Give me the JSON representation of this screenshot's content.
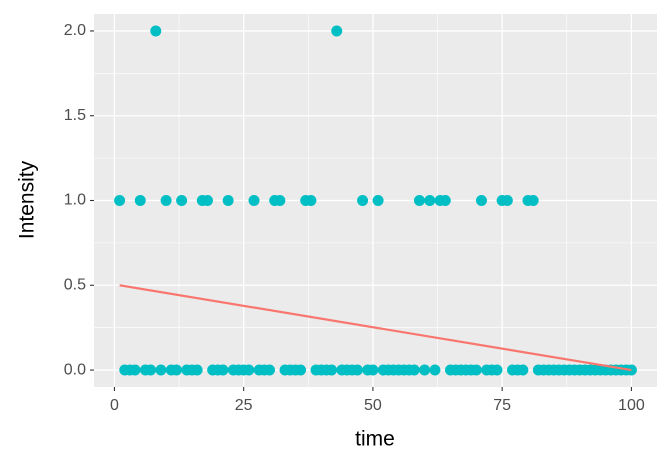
{
  "chart_data": {
    "type": "scatter",
    "x_label": "time",
    "y_label": "Intensity",
    "series": [
      {
        "type": "scatter",
        "color": "#00bfc4",
        "x": [
          1,
          2,
          3,
          4,
          5,
          6,
          7,
          8,
          9,
          10,
          11,
          12,
          13,
          14,
          15,
          16,
          17,
          18,
          19,
          20,
          21,
          22,
          23,
          24,
          25,
          26,
          27,
          28,
          29,
          30,
          31,
          32,
          33,
          34,
          35,
          36,
          37,
          38,
          39,
          40,
          41,
          42,
          43,
          44,
          45,
          46,
          47,
          48,
          49,
          50,
          51,
          52,
          53,
          54,
          55,
          56,
          57,
          58,
          59,
          60,
          61,
          62,
          63,
          64,
          65,
          66,
          67,
          68,
          69,
          70,
          71,
          72,
          73,
          74,
          75,
          76,
          77,
          78,
          79,
          80,
          81,
          82,
          83,
          84,
          85,
          86,
          87,
          88,
          89,
          90,
          91,
          92,
          93,
          94,
          95,
          96,
          97,
          98,
          99,
          100
        ],
        "values": [
          1,
          0,
          0,
          0,
          1,
          0,
          0,
          2,
          0,
          1,
          0,
          0,
          1,
          0,
          0,
          0,
          1,
          1,
          0,
          0,
          0,
          1,
          0,
          0,
          0,
          0,
          1,
          0,
          0,
          0,
          1,
          1,
          0,
          0,
          0,
          0,
          1,
          1,
          0,
          0,
          0,
          0,
          2,
          0,
          0,
          0,
          0,
          1,
          0,
          0,
          1,
          0,
          0,
          0,
          0,
          0,
          0,
          0,
          1,
          0,
          1,
          0,
          1,
          1,
          0,
          0,
          0,
          0,
          0,
          0,
          1,
          0,
          0,
          0,
          1,
          1,
          0,
          0,
          0,
          1,
          1,
          0,
          0,
          0,
          0,
          0,
          0,
          0,
          0,
          0,
          0,
          0,
          0,
          0,
          0,
          0,
          0,
          0,
          0,
          0
        ]
      },
      {
        "type": "line",
        "color": "#f8766d",
        "x": [
          1,
          100
        ],
        "values": [
          0.5,
          0
        ]
      }
    ],
    "xlim": [
      -3.95,
      104.95
    ],
    "ylim": [
      -0.1,
      2.1
    ],
    "xticks": [
      0,
      25,
      50,
      75,
      100
    ],
    "yticks": [
      {
        "value": 0,
        "label": "0.0"
      },
      {
        "value": 0.5,
        "label": "0.5"
      },
      {
        "value": 1,
        "label": "1.0"
      },
      {
        "value": 1.5,
        "label": "1.5"
      },
      {
        "value": 2,
        "label": "2.0"
      }
    ],
    "grid": true
  }
}
